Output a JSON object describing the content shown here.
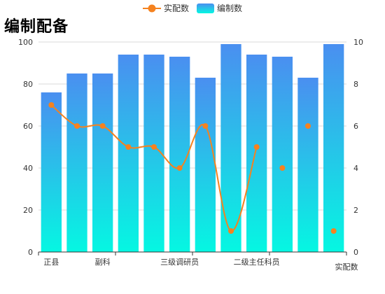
{
  "title": "编制配备",
  "chart_data": {
    "type": "bar",
    "categories": [
      "正县",
      "",
      "副科",
      "",
      "",
      "三级调研员",
      "",
      "",
      "二级主任科员",
      "",
      "",
      ""
    ],
    "series": [
      {
        "name": "编制数",
        "type": "bar",
        "axis": "left",
        "values": [
          76,
          85,
          85,
          94,
          94,
          93,
          83,
          99,
          94,
          93,
          83,
          99
        ]
      },
      {
        "name": "实配数",
        "type": "line-smooth",
        "axis": "right",
        "values": [
          7,
          6,
          6,
          5,
          5,
          4,
          6,
          1,
          5,
          4,
          6,
          1
        ],
        "line_points": 9
      }
    ],
    "y_left": {
      "min": 0,
      "max": 100,
      "ticks": [
        0,
        20,
        40,
        60,
        80,
        100
      ]
    },
    "y_right": {
      "min": 0,
      "max": 10,
      "ticks": [
        0,
        2,
        4,
        6,
        8,
        10
      ]
    },
    "x_axis_name": "实配数",
    "legend_position": "top-center",
    "grid": true,
    "colors": {
      "bar_top": "#4a8ff0",
      "bar_bottom": "#05f7e2",
      "line": "#f5821f",
      "grid": "#d9d9d9",
      "axis": "#333333"
    }
  }
}
